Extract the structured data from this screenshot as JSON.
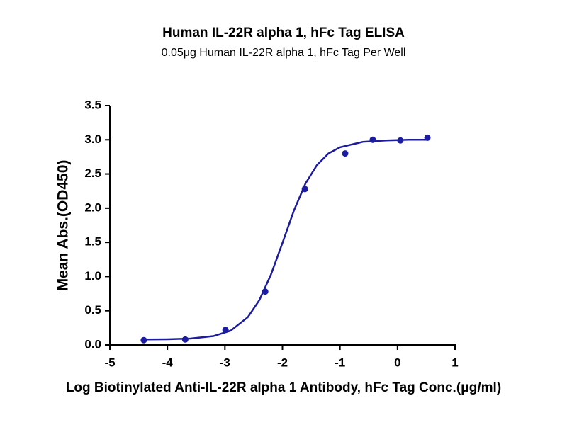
{
  "chart_data": {
    "type": "scatter",
    "title": "Human IL-22R alpha 1, hFc Tag ELISA",
    "subtitle": "0.05μg Human IL-22R alpha 1, hFc Tag Per Well",
    "x_label": "Log Biotinylated Anti-IL-22R alpha 1 Antibody, hFc Tag Conc.(μg/ml)",
    "y_label": "Mean Abs.(OD450)",
    "x": [
      -4.41,
      -3.69,
      -2.99,
      -2.3,
      -1.61,
      -0.91,
      -0.43,
      0.05,
      0.52
    ],
    "values": [
      0.07,
      0.08,
      0.22,
      0.78,
      2.28,
      2.8,
      3.0,
      2.99,
      3.03
    ],
    "color": "#1c1ca0",
    "curve": {
      "x": [
        -4.4,
        -4.0,
        -3.6,
        -3.2,
        -2.9,
        -2.6,
        -2.4,
        -2.2,
        -2.0,
        -1.8,
        -1.6,
        -1.4,
        -1.2,
        -1.0,
        -0.6,
        -0.2,
        0.2,
        0.5
      ],
      "values": [
        0.08,
        0.083,
        0.093,
        0.129,
        0.209,
        0.407,
        0.657,
        1.028,
        1.49,
        1.966,
        2.36,
        2.63,
        2.8,
        2.89,
        2.97,
        2.99,
        3.0,
        3.0
      ],
      "color": "#1c1c9c"
    },
    "xlim": [
      -5,
      1
    ],
    "xticks": [
      -5,
      -4,
      -3,
      -2,
      -1,
      0,
      1
    ],
    "ylim": [
      0,
      3.5
    ],
    "yticks": [
      {
        "value": 0,
        "label": "0.0"
      },
      {
        "value": 0.5,
        "label": "0.5"
      },
      {
        "value": 1,
        "label": "1.0"
      },
      {
        "value": 1.5,
        "label": "1.5"
      },
      {
        "value": 2,
        "label": "2.0"
      },
      {
        "value": 2.5,
        "label": "2.5"
      },
      {
        "value": 3,
        "label": "3.0"
      },
      {
        "value": 3.5,
        "label": "3.5"
      }
    ],
    "grid": false
  }
}
